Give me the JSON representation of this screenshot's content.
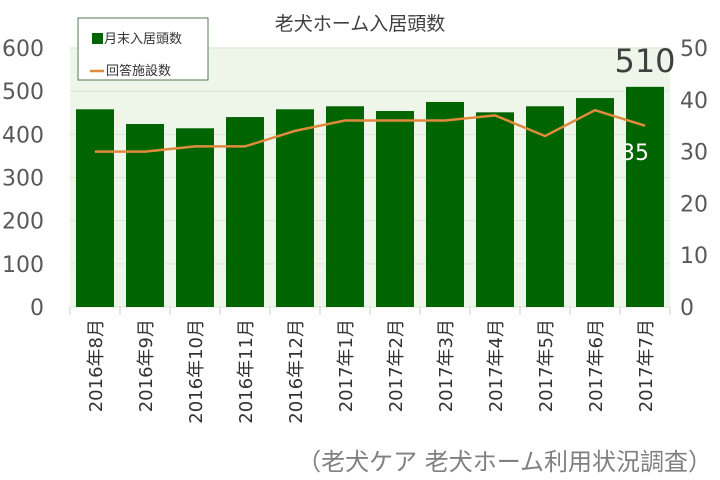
{
  "chart_data": {
    "type": "bar+line",
    "title": "老犬ホーム入居頭数",
    "categories": [
      "2016年8月",
      "2016年9月",
      "2016年10月",
      "2016年11月",
      "2016年12月",
      "2017年1月",
      "2017年2月",
      "2017年3月",
      "2017年4月",
      "2017年5月",
      "2017年6月",
      "2017年7月"
    ],
    "series": [
      {
        "name": "月末入居頭数",
        "type": "bar",
        "axis": "left",
        "color": "#006400",
        "values": [
          458,
          424,
          414,
          440,
          458,
          465,
          454,
          475,
          451,
          465,
          484,
          510
        ]
      },
      {
        "name": "回答施設数",
        "type": "line",
        "axis": "right",
        "color": "#e08a3c",
        "values": [
          30,
          30,
          31,
          31,
          34,
          36,
          36,
          36,
          37,
          33,
          38,
          35
        ]
      }
    ],
    "ylim_left": [
      0,
      600
    ],
    "yticks_left": [
      0,
      100,
      200,
      300,
      400,
      500,
      600
    ],
    "ylim_right": [
      0,
      50
    ],
    "yticks_right": [
      0,
      10,
      20,
      30,
      40,
      50
    ],
    "data_labels": {
      "bar_last": "510",
      "line_last": "35"
    },
    "grid": true,
    "legend": "top-left",
    "plot_background": "#eef6ea"
  },
  "source": "（老犬ケア 老犬ホーム利用状況調査）"
}
